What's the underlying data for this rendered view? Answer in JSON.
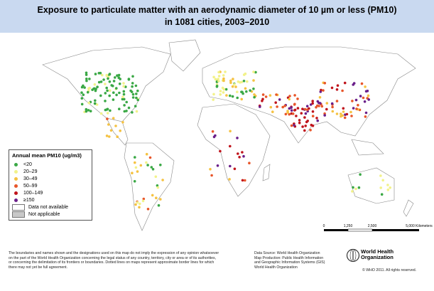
{
  "header": {
    "title_lines": [
      "Exposure to particulate matter with an aerodynamic diameter of 10 µm or less (PM10)",
      "in 1081 cities, 2003–2010"
    ]
  },
  "legend": {
    "title": "Annual mean PM10 (ug/m3)",
    "items": [
      {
        "label": "<20",
        "color": "#3aa845"
      },
      {
        "label": "20–29",
        "color": "#f2f28a"
      },
      {
        "label": "30–49",
        "color": "#f5c242"
      },
      {
        "label": "50–99",
        "color": "#e8562a"
      },
      {
        "label": "100–149",
        "color": "#c0141c"
      },
      {
        "label": "≥150",
        "color": "#6a1f8a"
      }
    ],
    "no_data": "Data not available",
    "not_applicable": "Not applicable"
  },
  "scale": {
    "labels": [
      "0",
      "1,250",
      "2,500",
      "5,000 Kilometers"
    ]
  },
  "footer": {
    "disclaimer": [
      "The boundaries and names shown and the designations used on this map do not imply the expression of any opinion whatsoever",
      "on the part of the World Health Organization concerning the legal status of any country, territory, city or area or of its authorities,",
      "or concerning the delimitation of its frontiers or boundaries.  Dotted lines on maps represent approximate border lines for which",
      "there may not yet be full agreement."
    ],
    "source": [
      "Data Source: World Health Organization",
      "Map Production: Public Health Information",
      "and Geographic Information Systems (GIS)",
      "World Health Organization"
    ],
    "logo": [
      "World Health",
      "Organization"
    ],
    "copyright": "© WHO 2011. All rights reserved."
  }
}
